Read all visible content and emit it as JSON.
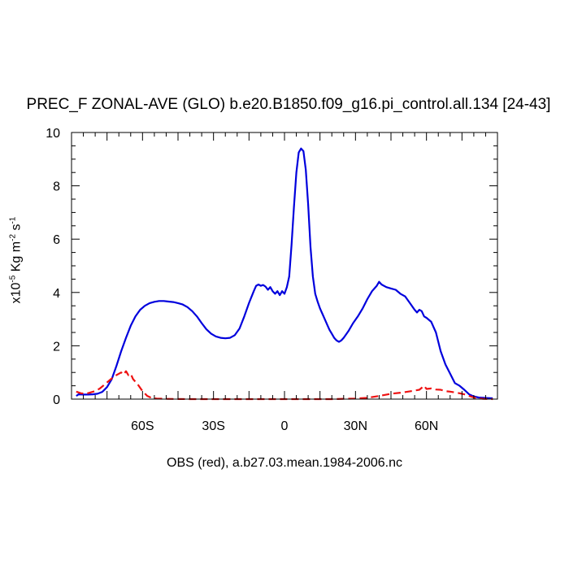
{
  "chart_data": {
    "type": "line",
    "title": "PREC_F ZONAL-AVE (GLO) b.e20.B1850.f09_g16.pi_control.all.134 [24-43]",
    "xlabel": "OBS (red), a.b27.03.mean.1984-2006.nc",
    "ylabel": {
      "prefix": "x10",
      "exp": "-5",
      "unit1": " Kg m",
      "exp1": "-2",
      "unit2": " s",
      "exp2": "-1"
    },
    "xlim": [
      -90,
      90
    ],
    "ylim": [
      0,
      10
    ],
    "x_ticks": [
      {
        "value": -60,
        "label": "60S"
      },
      {
        "value": -30,
        "label": "30S"
      },
      {
        "value": 0,
        "label": "0"
      },
      {
        "value": 30,
        "label": "30N"
      },
      {
        "value": 60,
        "label": "60N"
      }
    ],
    "y_ticks": [
      {
        "value": 0,
        "label": "0"
      },
      {
        "value": 2,
        "label": "2"
      },
      {
        "value": 4,
        "label": "4"
      },
      {
        "value": 6,
        "label": "6"
      },
      {
        "value": 8,
        "label": "8"
      },
      {
        "value": 10,
        "label": "10"
      }
    ],
    "series": [
      {
        "color": "#0000dd",
        "style": "solid",
        "points": [
          [
            -88,
            0.12
          ],
          [
            -87,
            0.18
          ],
          [
            -85,
            0.17
          ],
          [
            -83,
            0.17
          ],
          [
            -81,
            0.18
          ],
          [
            -79,
            0.2
          ],
          [
            -77,
            0.27
          ],
          [
            -75,
            0.45
          ],
          [
            -73,
            0.75
          ],
          [
            -71,
            1.25
          ],
          [
            -69,
            1.8
          ],
          [
            -67,
            2.3
          ],
          [
            -65,
            2.75
          ],
          [
            -63,
            3.1
          ],
          [
            -61,
            3.35
          ],
          [
            -59,
            3.5
          ],
          [
            -57,
            3.6
          ],
          [
            -55,
            3.65
          ],
          [
            -53,
            3.68
          ],
          [
            -51,
            3.68
          ],
          [
            -49,
            3.66
          ],
          [
            -47,
            3.64
          ],
          [
            -45,
            3.6
          ],
          [
            -43,
            3.55
          ],
          [
            -41,
            3.45
          ],
          [
            -39,
            3.3
          ],
          [
            -37,
            3.1
          ],
          [
            -35,
            2.85
          ],
          [
            -33,
            2.62
          ],
          [
            -31,
            2.45
          ],
          [
            -29,
            2.35
          ],
          [
            -27,
            2.3
          ],
          [
            -25,
            2.28
          ],
          [
            -23,
            2.3
          ],
          [
            -21,
            2.4
          ],
          [
            -19,
            2.65
          ],
          [
            -17,
            3.1
          ],
          [
            -15,
            3.6
          ],
          [
            -13,
            4.05
          ],
          [
            -12,
            4.25
          ],
          [
            -11,
            4.3
          ],
          [
            -10,
            4.25
          ],
          [
            -9,
            4.28
          ],
          [
            -8,
            4.22
          ],
          [
            -7,
            4.1
          ],
          [
            -6,
            4.2
          ],
          [
            -5,
            4.05
          ],
          [
            -4,
            3.95
          ],
          [
            -3,
            4.05
          ],
          [
            -2,
            3.9
          ],
          [
            -1,
            4.05
          ],
          [
            0,
            3.95
          ],
          [
            1,
            4.2
          ],
          [
            2,
            4.6
          ],
          [
            3,
            5.8
          ],
          [
            4,
            7.2
          ],
          [
            5,
            8.5
          ],
          [
            6,
            9.25
          ],
          [
            7,
            9.4
          ],
          [
            8,
            9.3
          ],
          [
            9,
            8.6
          ],
          [
            10,
            7.3
          ],
          [
            11,
            5.7
          ],
          [
            12,
            4.6
          ],
          [
            13,
            3.95
          ],
          [
            14,
            3.65
          ],
          [
            15,
            3.4
          ],
          [
            16,
            3.2
          ],
          [
            17,
            3.0
          ],
          [
            18,
            2.8
          ],
          [
            19,
            2.6
          ],
          [
            20,
            2.45
          ],
          [
            21,
            2.3
          ],
          [
            22,
            2.2
          ],
          [
            23,
            2.15
          ],
          [
            24,
            2.2
          ],
          [
            25,
            2.3
          ],
          [
            27,
            2.55
          ],
          [
            29,
            2.85
          ],
          [
            31,
            3.1
          ],
          [
            33,
            3.4
          ],
          [
            35,
            3.75
          ],
          [
            37,
            4.05
          ],
          [
            39,
            4.25
          ],
          [
            40,
            4.4
          ],
          [
            41,
            4.3
          ],
          [
            43,
            4.2
          ],
          [
            45,
            4.15
          ],
          [
            47,
            4.1
          ],
          [
            49,
            3.95
          ],
          [
            51,
            3.85
          ],
          [
            53,
            3.6
          ],
          [
            55,
            3.35
          ],
          [
            56,
            3.25
          ],
          [
            57,
            3.35
          ],
          [
            58,
            3.3
          ],
          [
            59,
            3.1
          ],
          [
            60,
            3.05
          ],
          [
            62,
            2.9
          ],
          [
            64,
            2.5
          ],
          [
            66,
            1.8
          ],
          [
            68,
            1.3
          ],
          [
            70,
            0.95
          ],
          [
            72,
            0.6
          ],
          [
            74,
            0.5
          ],
          [
            76,
            0.35
          ],
          [
            78,
            0.18
          ],
          [
            80,
            0.1
          ],
          [
            82,
            0.06
          ],
          [
            84,
            0.05
          ],
          [
            86,
            0.04
          ],
          [
            88,
            0.03
          ]
        ]
      },
      {
        "color": "#ee1111",
        "style": "dashed",
        "points": [
          [
            -88,
            0.28
          ],
          [
            -86,
            0.22
          ],
          [
            -84,
            0.2
          ],
          [
            -82,
            0.25
          ],
          [
            -80,
            0.3
          ],
          [
            -78,
            0.4
          ],
          [
            -76,
            0.55
          ],
          [
            -74,
            0.7
          ],
          [
            -72,
            0.85
          ],
          [
            -70,
            0.95
          ],
          [
            -69,
            1.0
          ],
          [
            -68,
            0.92
          ],
          [
            -67,
            1.05
          ],
          [
            -66,
            0.9
          ],
          [
            -65,
            0.95
          ],
          [
            -64,
            0.75
          ],
          [
            -62,
            0.55
          ],
          [
            -60,
            0.3
          ],
          [
            -58,
            0.12
          ],
          [
            -56,
            0.04
          ],
          [
            -54,
            0.02
          ],
          [
            -50,
            0.01
          ],
          [
            -40,
            0.0
          ],
          [
            -20,
            0.0
          ],
          [
            0,
            0.0
          ],
          [
            20,
            0.0
          ],
          [
            30,
            0.02
          ],
          [
            35,
            0.05
          ],
          [
            40,
            0.12
          ],
          [
            45,
            0.2
          ],
          [
            50,
            0.25
          ],
          [
            55,
            0.32
          ],
          [
            57,
            0.35
          ],
          [
            59,
            0.5
          ],
          [
            60,
            0.38
          ],
          [
            62,
            0.4
          ],
          [
            64,
            0.36
          ],
          [
            66,
            0.35
          ],
          [
            68,
            0.3
          ],
          [
            70,
            0.28
          ],
          [
            72,
            0.25
          ],
          [
            74,
            0.22
          ],
          [
            76,
            0.18
          ],
          [
            78,
            0.12
          ],
          [
            80,
            0.06
          ],
          [
            82,
            0.03
          ],
          [
            84,
            0.01
          ],
          [
            88,
            0.0
          ]
        ]
      }
    ]
  }
}
